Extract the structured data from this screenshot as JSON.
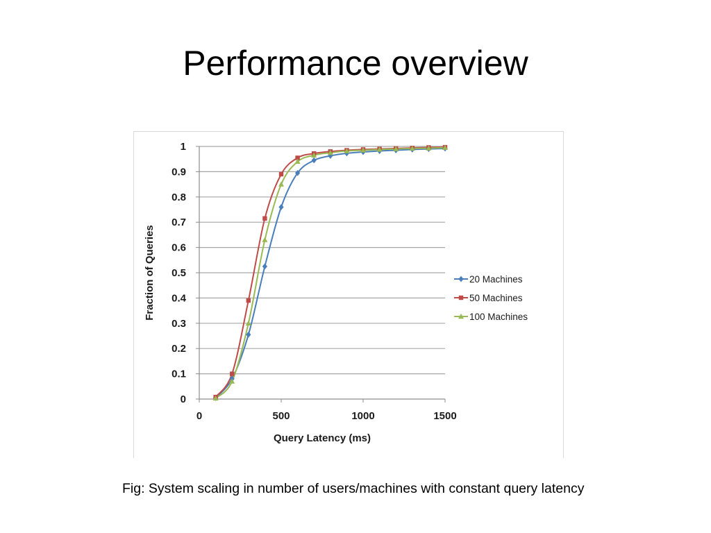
{
  "slide": {
    "title": "Performance overview",
    "caption": "Fig: System scaling in number of users/machines with constant query latency"
  },
  "chart_data": {
    "type": "line",
    "xlabel": "Query Latency (ms)",
    "ylabel": "Fraction of Queries",
    "xlim": [
      0,
      1500
    ],
    "ylim": [
      0,
      1
    ],
    "x_ticks": [
      "0",
      "500",
      "1000",
      "1500"
    ],
    "y_ticks": [
      "0",
      "0.1",
      "0.2",
      "0.3",
      "0.4",
      "0.5",
      "0.6",
      "0.7",
      "0.8",
      "0.9",
      "1"
    ],
    "grid": "horizontal",
    "legend_position": "right",
    "x": [
      100,
      200,
      300,
      400,
      500,
      600,
      700,
      800,
      900,
      1000,
      1100,
      1200,
      1300,
      1400,
      1500
    ],
    "series": [
      {
        "name": "20 Machines",
        "color": "#4a7ebb",
        "marker": "diamond",
        "values": [
          0.005,
          0.08,
          0.255,
          0.525,
          0.76,
          0.895,
          0.945,
          0.963,
          0.973,
          0.978,
          0.982,
          0.985,
          0.988,
          0.99,
          0.992
        ]
      },
      {
        "name": "50 Machines",
        "color": "#be4b48",
        "marker": "square",
        "values": [
          0.008,
          0.1,
          0.39,
          0.715,
          0.89,
          0.955,
          0.972,
          0.98,
          0.985,
          0.988,
          0.99,
          0.992,
          0.994,
          0.996,
          0.997
        ]
      },
      {
        "name": "100 Machines",
        "color": "#98b954",
        "marker": "triangle",
        "values": [
          0.003,
          0.07,
          0.3,
          0.63,
          0.85,
          0.94,
          0.965,
          0.975,
          0.982,
          0.985,
          0.988,
          0.99,
          0.992,
          0.993,
          0.995
        ]
      }
    ]
  }
}
